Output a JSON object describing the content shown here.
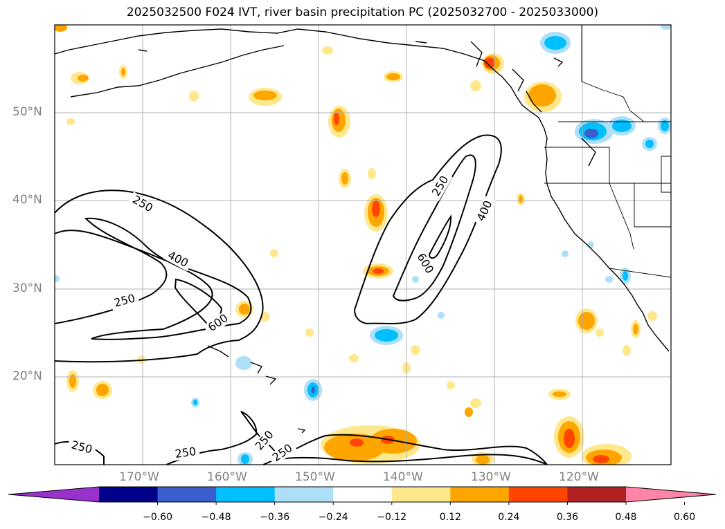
{
  "title": "2025032500 F024 IVT, river basin precipitation PC (2025032700 - 2025033000)",
  "map": {
    "projection": "PlateCarree",
    "lon_range": [
      -180,
      -110
    ],
    "lat_range": [
      10,
      60
    ],
    "gridlines": true,
    "lat_labels": [
      "50°N",
      "40°N",
      "30°N",
      "20°N"
    ],
    "lon_labels": [
      "170°W",
      "160°W",
      "150°W",
      "140°W",
      "130°W",
      "120°W"
    ],
    "ivt_contour_labels": [
      "250",
      "400",
      "250",
      "600",
      "250",
      "400",
      "600",
      "250",
      "250",
      "250",
      "250"
    ]
  },
  "colorbar": {
    "orientation": "horizontal",
    "extend": "both",
    "colors": [
      "#9932CC",
      "#00008B",
      "#3A5FCD",
      "#00BFFF",
      "#ADDFF7",
      "#FFFFFF",
      "#FFE88C",
      "#FFA500",
      "#FF4500",
      "#B22222",
      "#FF85A8"
    ],
    "tick_labels": [
      "−0.60",
      "−0.48",
      "−0.36",
      "−0.24",
      "−0.12",
      "0.12",
      "0.24",
      "0.36",
      "0.48",
      "0.60"
    ]
  }
}
